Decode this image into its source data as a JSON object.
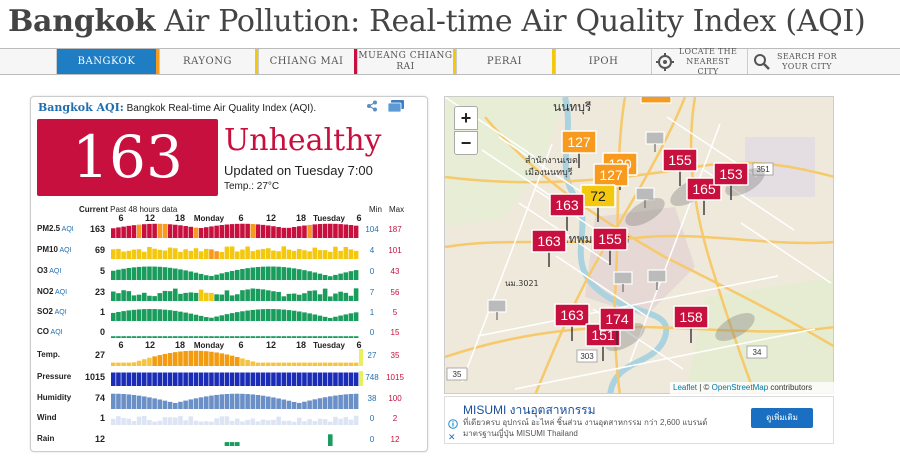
{
  "page": {
    "title_city": "Bangkok",
    "title_rest": "Air Pollution: Real-time Air Quality Index (AQI)"
  },
  "nav": {
    "items": [
      {
        "label": "Bangkok",
        "active": true
      },
      {
        "label": "Rayong"
      },
      {
        "label": "Chiang Mai"
      },
      {
        "label": "Mueang Chiang Rai"
      },
      {
        "label": "Perai"
      },
      {
        "label": "Ipoh"
      }
    ],
    "locate_label": "Locate the nearest city",
    "search_label": "Search for your city"
  },
  "card": {
    "city_aqi": "Bangkok AQI:",
    "subtitle": "Bangkok Real-time Air Quality Index (AQI).",
    "aqi_value": "163",
    "aqi_status": "Unhealthy",
    "updated": "Updated on Tuesday 7:00",
    "temp": "Temp.: 27°C",
    "data_head_current": "Current",
    "data_head_past": "Past 48 hours data",
    "min_label": "Min",
    "max_label": "Max",
    "time_axis_top": [
      "6",
      "12",
      "18",
      "Monday",
      "6",
      "12",
      "18",
      "Tuesday",
      "6"
    ],
    "time_axis_mid": [
      "6",
      "12",
      "18",
      "Monday",
      "6",
      "12",
      "18",
      "Tuesday",
      "6"
    ],
    "rows": [
      {
        "name": "PM2.5",
        "unit": "AQI",
        "current": "163",
        "min": "104",
        "max": "187"
      },
      {
        "name": "PM10",
        "unit": "AQI",
        "current": "69",
        "min": "4",
        "max": "101"
      },
      {
        "name": "O3",
        "unit": "AQI",
        "current": "5",
        "min": "0",
        "max": "43"
      },
      {
        "name": "NO2",
        "unit": "AQI",
        "current": "23",
        "min": "7",
        "max": "56"
      },
      {
        "name": "SO2",
        "unit": "AQI",
        "current": "1",
        "min": "1",
        "max": "5"
      },
      {
        "name": "CO",
        "unit": "AQI",
        "current": "0",
        "min": "0",
        "max": "15"
      },
      {
        "name": "Temp.",
        "unit": "",
        "current": "27",
        "min": "27",
        "max": "35"
      },
      {
        "name": "Pressure",
        "unit": "",
        "current": "1015",
        "min": "748",
        "max": "1015"
      },
      {
        "name": "Humidity",
        "unit": "",
        "current": "74",
        "min": "38",
        "max": "100"
      },
      {
        "name": "Wind",
        "unit": "",
        "current": "1",
        "min": "0",
        "max": "2"
      },
      {
        "name": "Rain",
        "unit": "",
        "current": "12",
        "min": "0",
        "max": "12"
      }
    ]
  },
  "map": {
    "markers": [
      "127",
      "120",
      "127",
      "72",
      "163",
      "163",
      "155",
      "155",
      "165",
      "153",
      "163",
      "151",
      "174",
      "158"
    ],
    "zoom_in": "+",
    "zoom_out": "−",
    "attribution_leaflet": "Leaflet",
    "attribution_sep": " | © ",
    "attribution_osm": "OpenStreetMap",
    "attribution_tail": " contributors",
    "labels": [
      "นนทบุรี",
      "สำนักงานเขต",
      "เมืองนนทบุรี",
      "กรุงเทพมหานคร",
      "351",
      "303",
      "34",
      "35",
      "นม.3021"
    ]
  },
  "ad": {
    "title": "MISUMI งานอุตสาหกรรม",
    "description": "ที่เดียวครบ อุปกรณ์ อะไหล่ ชิ้นส่วน งานอุตสาหกรรม กว่า 2,600 แบรนด์ มาตรฐานญี่ปุ่น MISUMI Thailand",
    "button": "ดูเพิ่มเติม",
    "close": "✕"
  },
  "colors": {
    "unhealthy": "#c8103e",
    "usg": "#f79a1e",
    "moderate": "#f3c80f",
    "good": "#1a9c5c",
    "nav_active": "#1f7dc4"
  }
}
